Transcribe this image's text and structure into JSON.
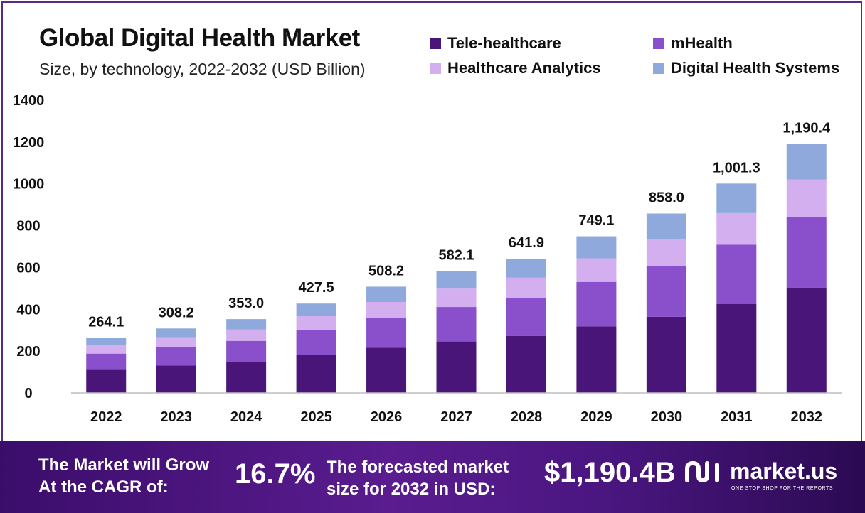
{
  "header": {
    "title": "Global Digital Health Market",
    "subtitle": "Size, by technology, 2022-2032 (USD Billion)"
  },
  "colors": {
    "tele_healthcare": "#4a1578",
    "mhealth": "#8a4fcb",
    "healthcare_analytics": "#d3aff0",
    "digital_health_systems": "#8fa9dc",
    "axis": "#bfbfbf",
    "banner": "#4a1680"
  },
  "chart_data": {
    "type": "bar",
    "stacked": true,
    "categories": [
      "2022",
      "2023",
      "2024",
      "2025",
      "2026",
      "2027",
      "2028",
      "2029",
      "2030",
      "2031",
      "2032"
    ],
    "series": [
      {
        "name": "Tele-healthcare",
        "values": [
          111,
          131,
          148,
          182,
          216,
          246,
          272,
          318,
          364,
          426,
          504
        ]
      },
      {
        "name": "mHealth",
        "values": [
          77,
          89,
          101,
          121,
          143,
          165,
          181,
          213,
          241,
          283,
          338
        ]
      },
      {
        "name": "Healthcare Analytics",
        "values": [
          40,
          46,
          54,
          64,
          76,
          88,
          98,
          113,
          130,
          151,
          179
        ]
      },
      {
        "name": "Digital Health Systems",
        "values": [
          36.1,
          42.2,
          50.0,
          60.5,
          73.2,
          83.1,
          90.9,
          105.1,
          123.0,
          141.3,
          169.4
        ]
      }
    ],
    "totals": [
      264.1,
      308.2,
      353.0,
      427.5,
      508.2,
      582.1,
      641.9,
      749.1,
      858.0,
      1001.3,
      1190.4
    ],
    "total_labels": [
      "264.1",
      "308.2",
      "353.0",
      "427.5",
      "508.2",
      "582.1",
      "641.9",
      "749.1",
      "858.0",
      "1,001.3",
      "1,190.4"
    ],
    "y_ticks": [
      0,
      200,
      400,
      600,
      800,
      1000,
      1200,
      1400
    ],
    "ylim": [
      0,
      1400
    ],
    "grid": false,
    "legend_position": "top-right"
  },
  "footer": {
    "cagr_label_line1": "The Market will Grow",
    "cagr_label_line2": "At the CAGR of:",
    "cagr_value": "16.7%",
    "forecast_label_line1": "The forecasted market",
    "forecast_label_line2": "size for 2032 in USD:",
    "forecast_value": "$1,190.4B",
    "brand": "market.us",
    "tagline": "ONE STOP SHOP FOR THE REPORTS",
    "logo_icon": "market-us-logo-icon"
  }
}
